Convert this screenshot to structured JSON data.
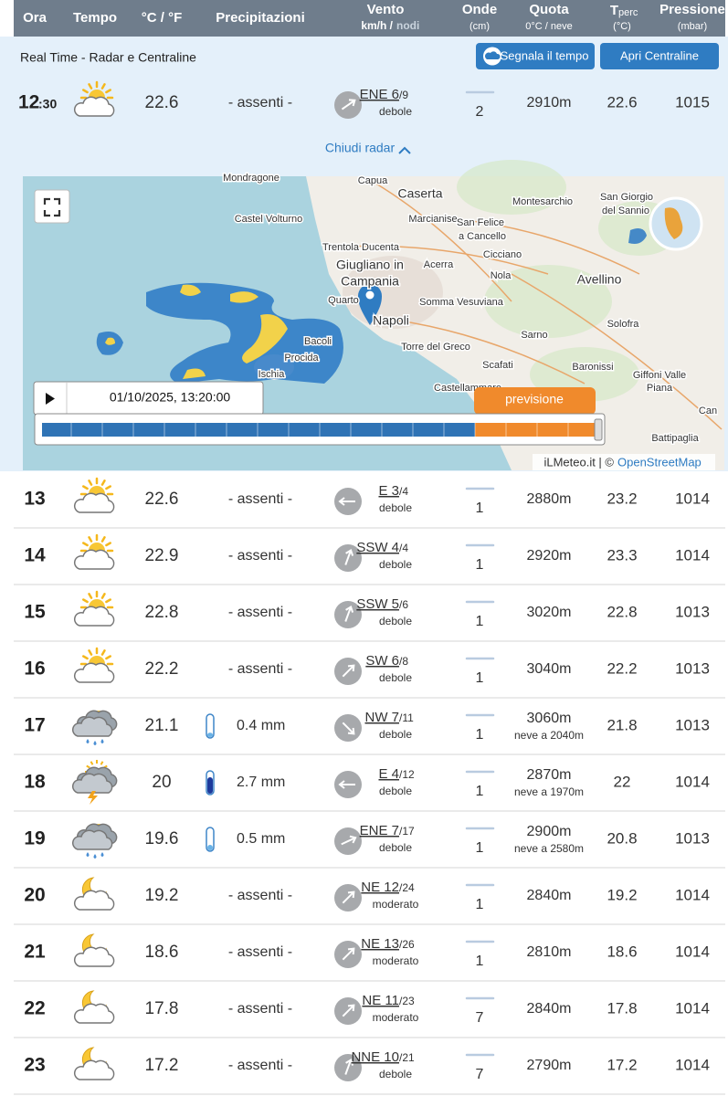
{
  "header": {
    "columns": [
      {
        "label": "Ora"
      },
      {
        "label": "Tempo"
      },
      {
        "label": "°C / °F"
      },
      {
        "label": "Precipitazioni"
      },
      {
        "label": "Vento",
        "sub": "km/h /",
        "sub2": "nodi"
      },
      {
        "label": "Onde",
        "sub": "(cm)"
      },
      {
        "label": "Quota",
        "sub": "0°C / neve"
      },
      {
        "label": "T",
        "label2": "perc",
        "sub": "(°C)"
      },
      {
        "label": "Pressione",
        "sub": "(mbar)"
      }
    ]
  },
  "realtime": {
    "title": "Real Time - Radar e Centraline",
    "buttons": [
      "Segnala il tempo",
      "Apri Centraline"
    ],
    "row": {
      "hour": "12",
      "minutes": ":30",
      "temp": 22.6,
      "precip": "- assenti -",
      "wind": "ENE 6",
      "knots": "/9",
      "strength": "debole",
      "waves": 2,
      "quota": "2910m",
      "tperc": 22.6,
      "pressure": 1015
    },
    "toggle": "Chiudi radar"
  },
  "map": {
    "labels": [
      "Mondragone",
      "Capua",
      "Caserta",
      "Castel Volturno",
      "Marcianise",
      "San Felice",
      "a Cancello",
      "Montesarchio",
      "San Giorgio",
      "del Sannio",
      "Trentola Ducenta",
      "Cicciano",
      "Giugliano in",
      "Campania",
      "Acerra",
      "Nola",
      "Avellino",
      "Quarto",
      "Somma Vesuviana",
      "Napoli",
      "Solofra",
      "Bacoli",
      "Procida",
      "Torre del Greco",
      "Sarno",
      "Ischia",
      "Scafati",
      "Baronissi",
      "Giffoni Valle",
      "Piana",
      "Castellammare",
      "Can",
      "Battipaglia"
    ],
    "timestamp": "01/10/2025, 13:20:00",
    "forecast_label": "previsione",
    "attribution": "iLMeteo.it | ©",
    "attribution_link": "OpenStreetMap"
  },
  "rows": [
    {
      "hour": 13,
      "temp": 22.6,
      "precip": "- assenti -",
      "wind": "E 3",
      "knots": "/4",
      "strength": "debole",
      "waves": 1,
      "quota": "2880m",
      "tperc": 23.2,
      "pressure": 1014
    },
    {
      "hour": 14,
      "temp": 22.9,
      "precip": "- assenti -",
      "wind": "SSW 4",
      "knots": "/4",
      "strength": "debole",
      "waves": 1,
      "quota": "2920m",
      "tperc": 23.3,
      "pressure": 1014
    },
    {
      "hour": 15,
      "temp": 22.8,
      "precip": "- assenti -",
      "wind": "SSW 5",
      "knots": "/6",
      "strength": "debole",
      "waves": 1,
      "quota": "3020m",
      "tperc": 22.8,
      "pressure": 1013
    },
    {
      "hour": 16,
      "temp": 22.2,
      "precip": "- assenti -",
      "wind": "SW 6",
      "knots": "/8",
      "strength": "debole",
      "waves": 1,
      "quota": "3040m",
      "tperc": 22.2,
      "pressure": 1013
    },
    {
      "hour": 17,
      "temp": 21.1,
      "precip": "0.4 mm",
      "wind": "NW 7",
      "knots": "/11",
      "strength": "debole",
      "waves": 1,
      "quota": "3060m",
      "snow": "neve a 2040m",
      "tperc": 21.8,
      "pressure": 1013
    },
    {
      "hour": 18,
      "temp": 20,
      "precip": "2.7 mm",
      "wind": "E 4",
      "knots": "/12",
      "strength": "debole",
      "waves": 1,
      "quota": "2870m",
      "snow": "neve a 1970m",
      "tperc": 22,
      "pressure": 1014
    },
    {
      "hour": 19,
      "temp": 19.6,
      "precip": "0.5 mm",
      "wind": "ENE 7",
      "knots": "/17",
      "strength": "debole",
      "waves": 1,
      "quota": "2900m",
      "snow": "neve a 2580m",
      "tperc": 20.8,
      "pressure": 1013
    },
    {
      "hour": 20,
      "temp": 19.2,
      "precip": "- assenti -",
      "wind": "NE 12",
      "knots": "/24",
      "strength": "moderato",
      "waves": 1,
      "quota": "2840m",
      "tperc": 19.2,
      "pressure": 1014
    },
    {
      "hour": 21,
      "temp": 18.6,
      "precip": "- assenti -",
      "wind": "NE 13",
      "knots": "/26",
      "strength": "moderato",
      "waves": 1,
      "quota": "2810m",
      "tperc": 18.6,
      "pressure": 1014
    },
    {
      "hour": 22,
      "temp": 17.8,
      "precip": "- assenti -",
      "wind": "NE 11",
      "knots": "/23",
      "strength": "moderato",
      "waves": 7,
      "quota": "2840m",
      "tperc": 17.8,
      "pressure": 1014
    },
    {
      "hour": 23,
      "temp": 17.2,
      "precip": "- assenti -",
      "wind": "NNE 10",
      "knots": "/21",
      "strength": "debole",
      "waves": 7,
      "quota": "2790m",
      "tperc": 17.2,
      "pressure": 1014
    }
  ]
}
